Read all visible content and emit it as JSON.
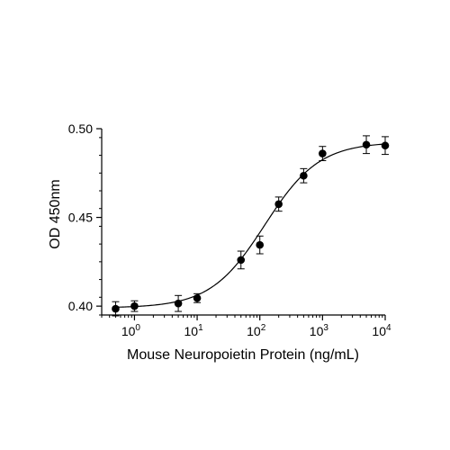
{
  "chart_data": {
    "type": "scatter",
    "title": "",
    "xlabel": "Mouse Neuropoietin Protein (ng/mL)",
    "ylabel": "OD 450nm",
    "x_scale": "log",
    "xlim": [
      0.3,
      10000
    ],
    "ylim": [
      0.395,
      0.5
    ],
    "x_ticks": [
      {
        "value": 1,
        "base": "10",
        "exp": "0"
      },
      {
        "value": 10,
        "base": "10",
        "exp": "1"
      },
      {
        "value": 100,
        "base": "10",
        "exp": "2"
      },
      {
        "value": 1000,
        "base": "10",
        "exp": "3"
      },
      {
        "value": 10000,
        "base": "10",
        "exp": "4"
      }
    ],
    "y_ticks": [
      {
        "value": 0.4,
        "label": "0.40"
      },
      {
        "value": 0.45,
        "label": "0.45"
      },
      {
        "value": 0.5,
        "label": "0.50"
      }
    ],
    "grid": false,
    "legend": "none",
    "point_color": "#000000",
    "series": [
      {
        "x": [
          0.5,
          1,
          5,
          10,
          50,
          100,
          200,
          500,
          1000,
          5000,
          10000
        ],
        "y": [
          0.3985,
          0.4,
          0.4015,
          0.4045,
          0.426,
          0.4345,
          0.4575,
          0.4735,
          0.486,
          0.491,
          0.4905
        ],
        "error": [
          0.004,
          0.003,
          0.0045,
          0.0025,
          0.005,
          0.005,
          0.004,
          0.004,
          0.004,
          0.005,
          0.005
        ]
      }
    ],
    "fit": {
      "type": "4PL",
      "bottom": 0.399,
      "top": 0.4925,
      "ec50": 120,
      "hill": 1.0
    }
  }
}
